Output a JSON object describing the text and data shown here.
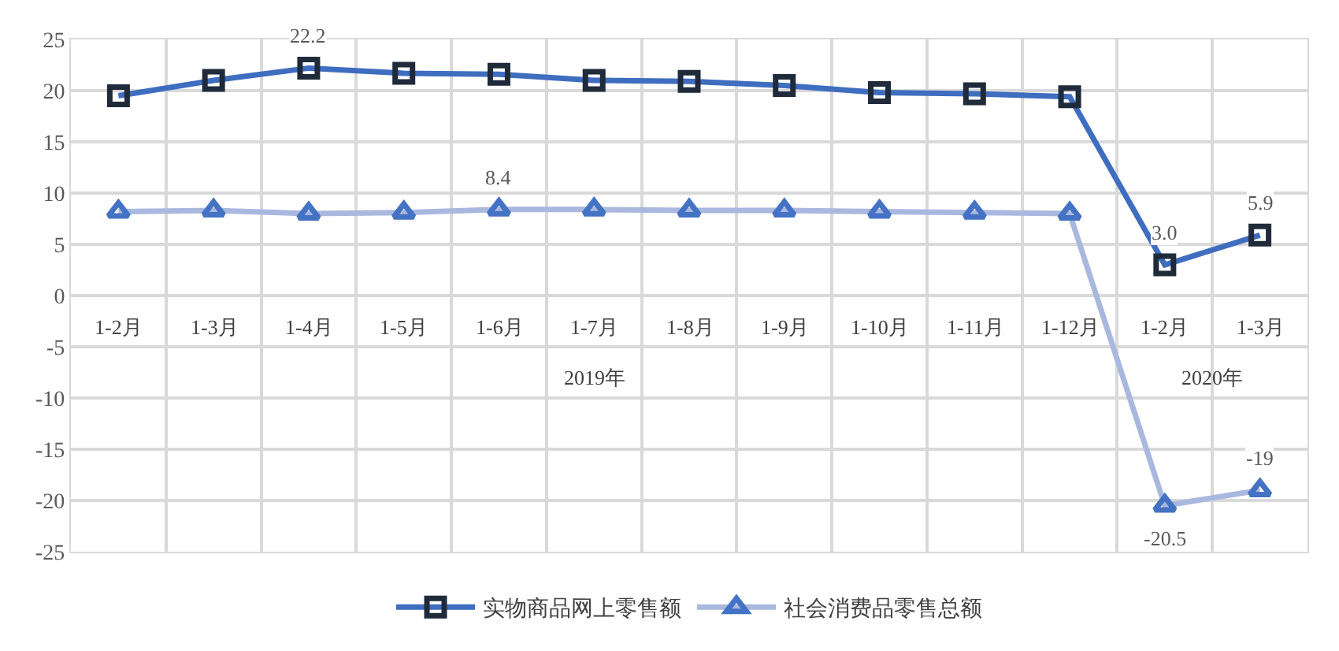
{
  "chart_data": {
    "type": "line",
    "categories": [
      "1-2月",
      "1-3月",
      "1-4月",
      "1-5月",
      "1-6月",
      "1-7月",
      "1-8月",
      "1-9月",
      "1-10月",
      "1-11月",
      "1-12月",
      "1-2月",
      "1-3月"
    ],
    "series": [
      {
        "name": "实物商品网上零售额",
        "color": "#3f6dbf",
        "marker": "square",
        "values": [
          19.5,
          21.0,
          22.2,
          21.7,
          21.6,
          21.0,
          20.9,
          20.5,
          19.8,
          19.7,
          19.4,
          3.0,
          5.9
        ],
        "value_labels": [
          null,
          null,
          "22.2",
          null,
          null,
          null,
          null,
          null,
          null,
          null,
          null,
          "3.0",
          "5.9"
        ]
      },
      {
        "name": "社会消费品零售总额",
        "color": "#a9b8de",
        "marker": "triangle",
        "values": [
          8.2,
          8.3,
          8.0,
          8.1,
          8.4,
          8.4,
          8.3,
          8.3,
          8.2,
          8.1,
          8.0,
          -20.5,
          -19
        ],
        "value_labels": [
          null,
          null,
          null,
          null,
          "8.4",
          null,
          null,
          null,
          null,
          null,
          null,
          "-20.5",
          "-19"
        ]
      }
    ],
    "annotations": [
      "2019年",
      "2020年"
    ],
    "ylim": [
      -25,
      25
    ],
    "yticks": [
      -25,
      -20,
      -15,
      -10,
      -5,
      0,
      5,
      10,
      15,
      20,
      25
    ],
    "grid": true,
    "legend": "bottom"
  }
}
